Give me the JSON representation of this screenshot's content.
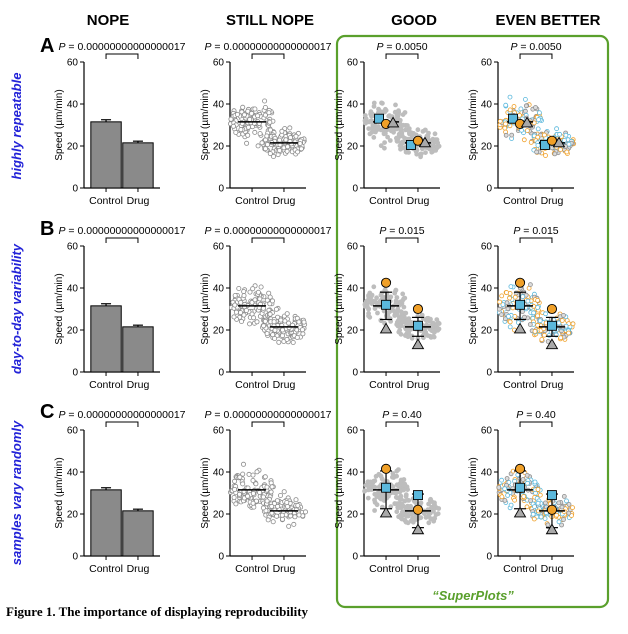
{
  "column_headers": [
    "NOPE",
    "STILL NOPE",
    "GOOD",
    "EVEN BETTER"
  ],
  "row_letters": [
    "A",
    "B",
    "C"
  ],
  "row_titles": [
    "highly repeatable",
    "day-to-day variability",
    "samples vary randomly"
  ],
  "superplots_label": "“SuperPlots”",
  "figure_caption": "Figure 1. The importance of displaying reproducibility",
  "colors": {
    "bar_fill": "#8a8a8a",
    "dot_gray": "#bdbdbd",
    "green_frame": "#5aa02c",
    "row_title_blue": "#2323d8",
    "rep_blue": "#5bb8dc",
    "rep_orange": "#f0a028",
    "rep_gray": "#a9a9a9"
  },
  "chart_data": [
    {
      "panel": "A-NOPE",
      "type": "bar",
      "categories": [
        "Control",
        "Drug"
      ],
      "values": [
        31.5,
        21.5
      ],
      "errors": [
        1.0,
        0.8
      ],
      "ylabel": "Speed (µm/min)",
      "ylim": [
        0,
        60
      ],
      "yticks": [
        0,
        20,
        40,
        60
      ],
      "p_label": "P = 0.00000000000000017"
    },
    {
      "panel": "A-STILL NOPE",
      "type": "scatter",
      "categories": [
        "Control",
        "Drug"
      ],
      "means": [
        31.5,
        21.5
      ],
      "spread": [
        [
          8,
          56
        ],
        [
          6,
          38
        ]
      ],
      "ylabel": "Speed (µm/min)",
      "ylim": [
        0,
        60
      ],
      "yticks": [
        0,
        20,
        40,
        60
      ],
      "p_label": "P = 0.00000000000000017"
    },
    {
      "panel": "A-GOOD",
      "type": "scatter",
      "categories": [
        "Control",
        "Drug"
      ],
      "means": [
        31.5,
        21.5
      ],
      "spread": [
        [
          8,
          56
        ],
        [
          6,
          38
        ]
      ],
      "replicate_means": [
        [
          33.0,
          30.5,
          31.0
        ],
        [
          20.5,
          22.5,
          21.5
        ]
      ],
      "ylabel": "Speed (µm/min)",
      "ylim": [
        0,
        60
      ],
      "yticks": [
        0,
        20,
        40,
        60
      ],
      "p_label": "P = 0.0050"
    },
    {
      "panel": "A-EVEN BETTER",
      "type": "scatter",
      "categories": [
        "Control",
        "Drug"
      ],
      "means": [
        31.5,
        21.5
      ],
      "spread": [
        [
          8,
          56
        ],
        [
          6,
          38
        ]
      ],
      "replicate_means": [
        [
          33.0,
          30.5,
          31.0
        ],
        [
          20.5,
          22.5,
          21.5
        ]
      ],
      "ylabel": "Speed (µm/min)",
      "ylim": [
        0,
        60
      ],
      "yticks": [
        0,
        20,
        40,
        60
      ],
      "p_label": "P = 0.0050"
    },
    {
      "panel": "B-NOPE",
      "type": "bar",
      "categories": [
        "Control",
        "Drug"
      ],
      "values": [
        31.5,
        21.5
      ],
      "errors": [
        1.0,
        0.8
      ],
      "ylabel": "Speed (µm/min)",
      "ylim": [
        0,
        60
      ],
      "yticks": [
        0,
        20,
        40,
        60
      ],
      "p_label": "P = 0.00000000000000017"
    },
    {
      "panel": "B-STILL NOPE",
      "type": "scatter",
      "categories": [
        "Control",
        "Drug"
      ],
      "means": [
        31.5,
        21.5
      ],
      "spread": [
        [
          8,
          54
        ],
        [
          6,
          39
        ]
      ],
      "ylabel": "Speed (µm/min)",
      "ylim": [
        0,
        60
      ],
      "yticks": [
        0,
        20,
        40,
        60
      ],
      "p_label": "P = 0.00000000000000017"
    },
    {
      "panel": "B-GOOD",
      "type": "scatter",
      "categories": [
        "Control",
        "Drug"
      ],
      "means": [
        31.5,
        21.5
      ],
      "errors": [
        6.5,
        4.5
      ],
      "spread": [
        [
          8,
          54
        ],
        [
          6,
          39
        ]
      ],
      "replicate_means": [
        [
          32.0,
          42.5,
          20.5
        ],
        [
          22.0,
          30.0,
          13.0
        ]
      ],
      "ylabel": "Speed (µm/min)",
      "ylim": [
        0,
        60
      ],
      "yticks": [
        0,
        20,
        40,
        60
      ],
      "p_label": "P = 0.015"
    },
    {
      "panel": "B-EVEN BETTER",
      "type": "scatter",
      "categories": [
        "Control",
        "Drug"
      ],
      "means": [
        31.5,
        21.5
      ],
      "errors": [
        6.5,
        4.5
      ],
      "spread": [
        [
          8,
          54
        ],
        [
          6,
          39
        ]
      ],
      "replicate_means": [
        [
          32.0,
          42.5,
          20.5
        ],
        [
          22.0,
          30.0,
          13.0
        ]
      ],
      "ylabel": "Speed (µm/min)",
      "ylim": [
        0,
        60
      ],
      "yticks": [
        0,
        20,
        40,
        60
      ],
      "p_label": "P = 0.015"
    },
    {
      "panel": "C-NOPE",
      "type": "bar",
      "categories": [
        "Control",
        "Drug"
      ],
      "values": [
        31.5,
        21.5
      ],
      "errors": [
        1.0,
        0.8
      ],
      "ylabel": "Speed (µm/min)",
      "ylim": [
        0,
        60
      ],
      "yticks": [
        0,
        20,
        40,
        60
      ],
      "p_label": "P = 0.00000000000000017"
    },
    {
      "panel": "C-STILL NOPE",
      "type": "scatter",
      "categories": [
        "Control",
        "Drug"
      ],
      "means": [
        31.5,
        21.5
      ],
      "spread": [
        [
          8,
          54
        ],
        [
          6,
          39
        ]
      ],
      "ylabel": "Speed (µm/min)",
      "ylim": [
        0,
        60
      ],
      "yticks": [
        0,
        20,
        40,
        60
      ],
      "p_label": "P = 0.00000000000000017"
    },
    {
      "panel": "C-GOOD",
      "type": "scatter",
      "categories": [
        "Control",
        "Drug"
      ],
      "means": [
        31.5,
        21.5
      ],
      "errors": [
        9.0,
        8.0
      ],
      "spread": [
        [
          8,
          54
        ],
        [
          6,
          39
        ]
      ],
      "replicate_means": [
        [
          32.5,
          41.5,
          20.5
        ],
        [
          29.0,
          22.0,
          12.5
        ]
      ],
      "ylabel": "Speed (µm/min)",
      "ylim": [
        0,
        60
      ],
      "yticks": [
        0,
        20,
        40,
        60
      ],
      "p_label": "P = 0.40"
    },
    {
      "panel": "C-EVEN BETTER",
      "type": "scatter",
      "categories": [
        "Control",
        "Drug"
      ],
      "means": [
        31.5,
        21.5
      ],
      "errors": [
        9.0,
        8.0
      ],
      "spread": [
        [
          8,
          54
        ],
        [
          6,
          39
        ]
      ],
      "replicate_means": [
        [
          32.5,
          41.5,
          20.5
        ],
        [
          29.0,
          22.0,
          12.5
        ]
      ],
      "ylabel": "Speed (µm/min)",
      "ylim": [
        0,
        60
      ],
      "yticks": [
        0,
        20,
        40,
        60
      ],
      "p_label": "P = 0.40"
    }
  ]
}
